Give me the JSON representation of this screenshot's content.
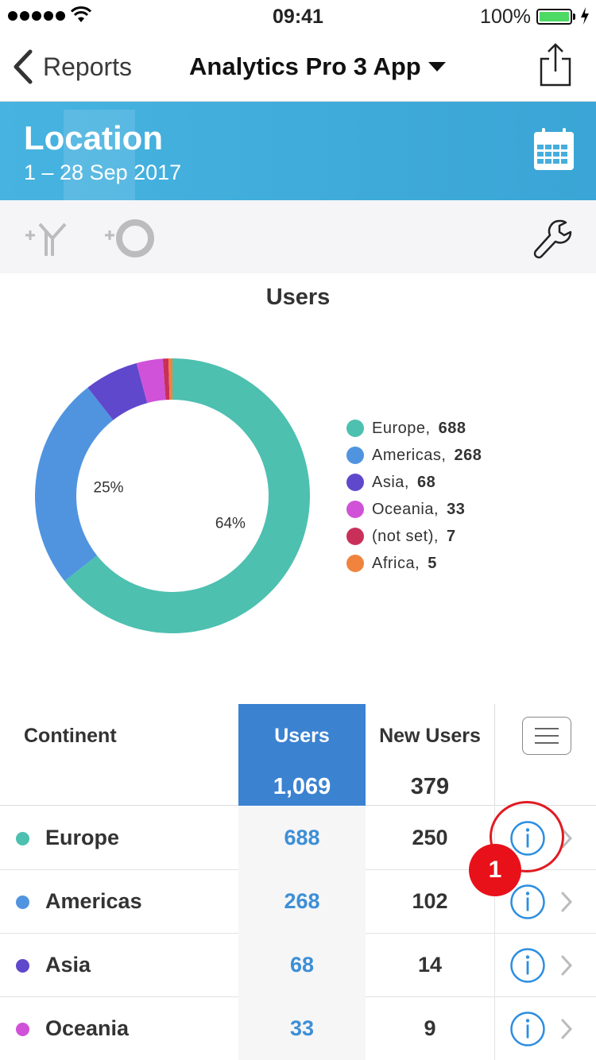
{
  "status_bar": {
    "time": "09:41",
    "battery": "100%"
  },
  "nav": {
    "back_label": "Reports",
    "title": "Analytics Pro 3 App"
  },
  "banner": {
    "title": "Location",
    "subtitle": "1 – 28 Sep 2017"
  },
  "chart_data": {
    "type": "pie",
    "title": "Users",
    "categories": [
      "Europe",
      "Americas",
      "Asia",
      "Oceania",
      "(not set)",
      "Africa"
    ],
    "values": [
      688,
      268,
      68,
      33,
      7,
      5
    ],
    "colors": [
      "#4dc0b0",
      "#5094e0",
      "#6048cc",
      "#d052d8",
      "#c8305a",
      "#f0843e"
    ],
    "slice_labels": [
      "64%",
      "25%",
      "",
      "",
      "",
      ""
    ],
    "legend_position": "right",
    "donut": true
  },
  "legend": [
    {
      "name": "Europe",
      "value": "688",
      "color": "#4dc0b0"
    },
    {
      "name": "Americas",
      "value": "268",
      "color": "#5094e0"
    },
    {
      "name": "Asia",
      "value": "68",
      "color": "#6048cc"
    },
    {
      "name": "Oceania",
      "value": "33",
      "color": "#d052d8"
    },
    {
      "name": "(not set)",
      "value": "7",
      "color": "#c8305a"
    },
    {
      "name": "Africa",
      "value": "5",
      "color": "#f0843e"
    }
  ],
  "table": {
    "col_continent": "Continent",
    "col_users": "Users",
    "col_new_users": "New Users",
    "total_users": "1,069",
    "total_new_users": "379",
    "rows": [
      {
        "name": "Europe",
        "users": "688",
        "new_users": "250",
        "color": "#4dc0b0"
      },
      {
        "name": "Americas",
        "users": "268",
        "new_users": "102",
        "color": "#5094e0"
      },
      {
        "name": "Asia",
        "users": "68",
        "new_users": "14",
        "color": "#6048cc"
      },
      {
        "name": "Oceania",
        "users": "33",
        "new_users": "9",
        "color": "#d052d8"
      }
    ]
  },
  "annotation": {
    "badge": "1"
  }
}
